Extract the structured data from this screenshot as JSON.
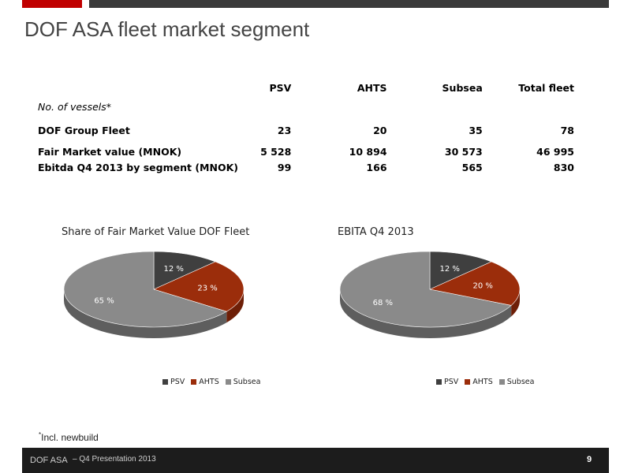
{
  "title": "DOF ASA fleet market segment",
  "table": {
    "headers": [
      "",
      "PSV",
      "AHTS",
      "Subsea",
      "Total fleet"
    ],
    "subheader": "No. of vessels*",
    "rows": [
      [
        "DOF Group Fleet",
        "23",
        "20",
        "35",
        "78"
      ],
      [
        "Fair Market value (MNOK)",
        "5 528",
        "10 894",
        "30 573",
        "46 995"
      ],
      [
        "Ebitda Q4 2013 by segment (MNOK)",
        "99",
        "166",
        "565",
        "830"
      ]
    ]
  },
  "colors": {
    "psv": "#3f3f3f",
    "ahts": "#9b2d0b",
    "subsea": "#8a8a8a",
    "accent_red": "#c00000"
  },
  "chart_data": [
    {
      "type": "pie",
      "title": "Share of Fair Market Value  DOF Fleet",
      "categories": [
        "PSV",
        "AHTS",
        "Subsea"
      ],
      "values": [
        12,
        23,
        65
      ],
      "labels": [
        "12 %",
        "23 %",
        "65 %"
      ],
      "legend": "bottom"
    },
    {
      "type": "pie",
      "title": "EBITA Q4 2013",
      "categories": [
        "PSV",
        "AHTS",
        "Subsea"
      ],
      "values": [
        12,
        20,
        68
      ],
      "labels": [
        "12 %",
        "20 %",
        "68 %"
      ],
      "legend": "bottom"
    }
  ],
  "footnote": {
    "mark": "*",
    "text": "Incl. newbuild"
  },
  "footer": {
    "company": "DOF ASA",
    "presentation": "– Q4 Presentation 2013",
    "page": "9"
  }
}
